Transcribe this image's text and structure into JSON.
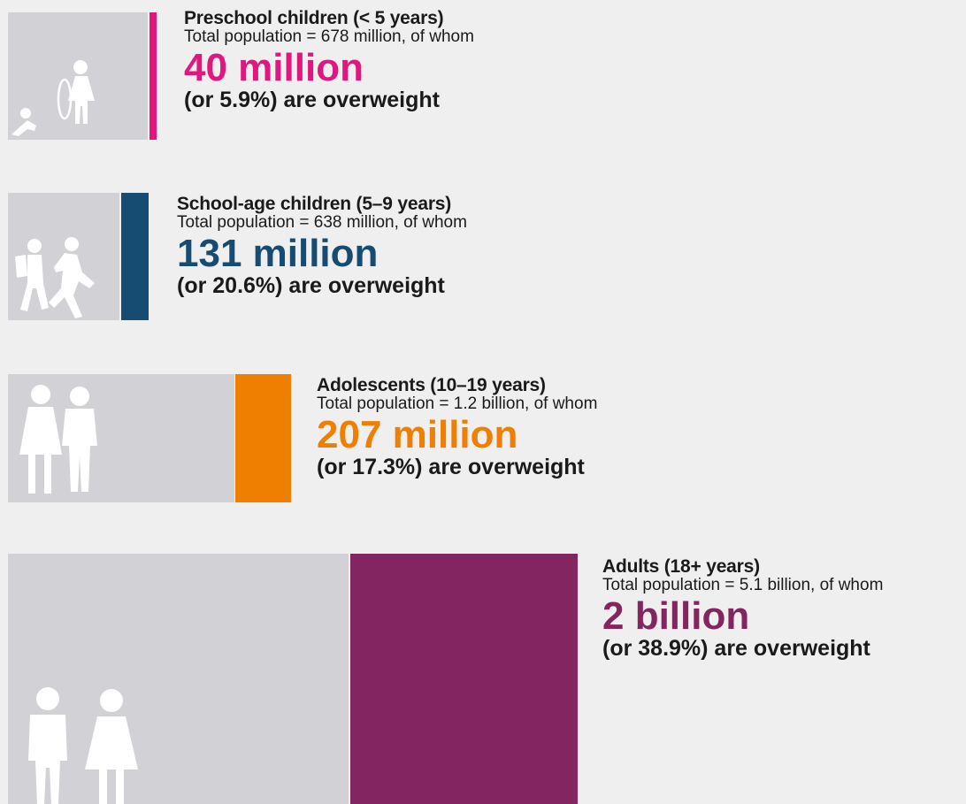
{
  "chart_data": {
    "type": "bar",
    "title": "",
    "categories": [
      "Preschool children (< 5 years)",
      "School-age children (5–9 years)",
      "Adolescents (10–19 years)",
      "Adults (18+ years)"
    ],
    "series": [
      {
        "values": [
          678,
          638,
          1200,
          5100
        ]
      },
      {
        "values": [
          40,
          131,
          207,
          2000
        ]
      }
    ],
    "groups": [
      {
        "label": "Preschool children (< 5 years)",
        "total_text": "Total population = 678 million, of whom",
        "value_text": "40 million",
        "share_text": "(or 5.9%) are overweight",
        "total_millions": 678,
        "overweight_millions": 40,
        "color": "#e0187e",
        "icon": "toddler-and-girl-with-hoop-icon"
      },
      {
        "label": "School-age children (5–9 years)",
        "total_text": "Total population = 638 million, of whom",
        "value_text": "131 million",
        "share_text": "(or 20.6%) are overweight",
        "total_millions": 638,
        "overweight_millions": 131,
        "color": "#164c72",
        "icon": "running-children-icon"
      },
      {
        "label": "Adolescents (10–19 years)",
        "total_text": "Total population = 1.2 billion, of whom",
        "value_text": "207 million",
        "share_text": "(or 17.3%) are overweight",
        "total_millions": 1200,
        "overweight_millions": 207,
        "color": "#ee7f00",
        "icon": "two-adolescents-icon"
      },
      {
        "label": "Adults (18+ years)",
        "total_text": "Total population = 5.1 billion, of whom",
        "value_text": "2 billion",
        "share_text": "(or 38.9%) are overweight",
        "total_millions": 5100,
        "overweight_millions": 2000,
        "color": "#83265f",
        "icon": "two-adults-icon"
      }
    ]
  }
}
